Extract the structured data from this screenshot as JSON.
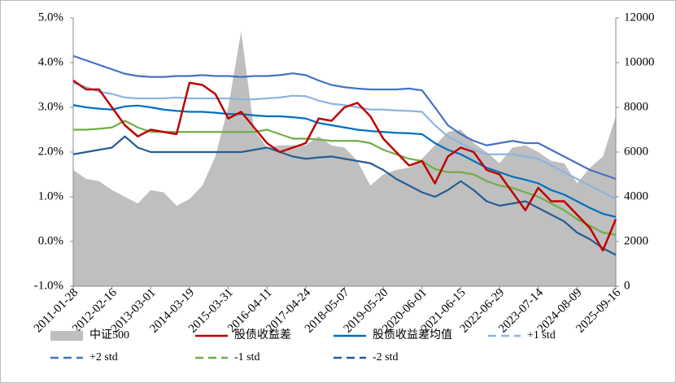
{
  "chart_data": {
    "type": "line",
    "categories": [
      "2011-01-28",
      null,
      null,
      "2012-02-16",
      null,
      null,
      "2013-03-01",
      null,
      null,
      "2014-03-19",
      null,
      null,
      "2015-03-31",
      null,
      null,
      "2016-04-11",
      null,
      null,
      "2017-04-24",
      null,
      null,
      "2018-05-07",
      null,
      null,
      "2019-05-20",
      null,
      null,
      "2020-06-01",
      null,
      null,
      "2021-06-15",
      null,
      null,
      "2022-06-29",
      null,
      null,
      "2023-07-14",
      null,
      null,
      "2024-08-09",
      null,
      null,
      "2025-09-16"
    ],
    "ylim": [
      -1,
      5
    ],
    "yticks": [
      {
        "value": -1,
        "label": "-1.0%"
      },
      {
        "value": 0,
        "label": "0.0%"
      },
      {
        "value": 1,
        "label": "1.0%"
      },
      {
        "value": 2,
        "label": "2.0%"
      },
      {
        "value": 3,
        "label": "3.0%"
      },
      {
        "value": 4,
        "label": "4.0%"
      },
      {
        "value": 5,
        "label": "5.0%"
      }
    ],
    "y2lim": [
      0,
      12000
    ],
    "y2ticks": [
      0,
      2000,
      4000,
      6000,
      8000,
      10000,
      12000
    ],
    "series": [
      {
        "name": "中证500",
        "type": "area",
        "axis": "y2",
        "color": "#bfbfbf",
        "values": [
          5200,
          4800,
          4700,
          4300,
          4000,
          3700,
          4300,
          4200,
          3600,
          3900,
          4500,
          5800,
          8000,
          11400,
          7000,
          6200,
          6300,
          6300,
          6300,
          6700,
          6300,
          6200,
          5600,
          4500,
          5000,
          5200,
          5300,
          5700,
          6300,
          6900,
          7000,
          6400,
          6000,
          5500,
          6200,
          6300,
          6000,
          5600,
          5500,
          4600,
          5300,
          5800,
          7600
        ]
      },
      {
        "name": "股债收益差",
        "type": "line",
        "color": "#c00000",
        "legend_line": "solid",
        "values": [
          3.6,
          3.4,
          3.4,
          3.0,
          2.6,
          2.35,
          2.5,
          2.45,
          2.4,
          3.55,
          3.5,
          3.3,
          2.75,
          2.9,
          2.55,
          2.2,
          2.0,
          2.1,
          2.2,
          2.75,
          2.7,
          3.0,
          3.1,
          2.8,
          2.3,
          2.0,
          1.7,
          1.8,
          1.3,
          1.9,
          2.1,
          2.0,
          1.6,
          1.5,
          1.1,
          0.7,
          1.2,
          0.9,
          0.9,
          0.6,
          0.3,
          -0.2,
          0.5
        ]
      },
      {
        "name": "股债收益差均值",
        "type": "line",
        "color": "#0070c0",
        "legend_line": "solid",
        "values": [
          3.05,
          3.0,
          2.97,
          2.95,
          3.02,
          3.04,
          3.0,
          2.95,
          2.92,
          2.9,
          2.9,
          2.88,
          2.85,
          2.85,
          2.82,
          2.8,
          2.8,
          2.78,
          2.75,
          2.65,
          2.6,
          2.55,
          2.5,
          2.47,
          2.45,
          2.43,
          2.42,
          2.4,
          2.2,
          2.05,
          1.95,
          1.8,
          1.65,
          1.55,
          1.45,
          1.38,
          1.3,
          1.15,
          1.05,
          0.9,
          0.75,
          0.62,
          0.55
        ]
      },
      {
        "name": "+1 std",
        "type": "line",
        "color": "#8db4e2",
        "legend_line": "dashed",
        "values": [
          3.55,
          3.45,
          3.35,
          3.3,
          3.22,
          3.2,
          3.2,
          3.2,
          3.22,
          3.2,
          3.2,
          3.2,
          3.2,
          3.18,
          3.18,
          3.2,
          3.22,
          3.26,
          3.25,
          3.15,
          3.08,
          3.05,
          3.0,
          2.95,
          2.95,
          2.93,
          2.92,
          2.9,
          2.6,
          2.35,
          2.2,
          2.05,
          1.95,
          1.95,
          1.95,
          1.9,
          1.85,
          1.7,
          1.55,
          1.4,
          1.25,
          1.1,
          0.95
        ]
      },
      {
        "name": "+2 std",
        "type": "line",
        "color": "#4472c4",
        "legend_line": "dashed",
        "values": [
          4.15,
          4.05,
          3.95,
          3.85,
          3.75,
          3.7,
          3.68,
          3.68,
          3.7,
          3.7,
          3.72,
          3.7,
          3.7,
          3.68,
          3.7,
          3.7,
          3.72,
          3.76,
          3.72,
          3.6,
          3.5,
          3.45,
          3.42,
          3.4,
          3.4,
          3.4,
          3.42,
          3.38,
          3.0,
          2.6,
          2.4,
          2.25,
          2.15,
          2.2,
          2.25,
          2.2,
          2.2,
          2.05,
          1.9,
          1.75,
          1.6,
          1.5,
          1.4
        ]
      },
      {
        "name": "-1 std",
        "type": "line",
        "color": "#70ad47",
        "legend_line": "dashed",
        "values": [
          2.5,
          2.5,
          2.52,
          2.55,
          2.7,
          2.55,
          2.45,
          2.45,
          2.45,
          2.45,
          2.45,
          2.45,
          2.45,
          2.45,
          2.45,
          2.5,
          2.4,
          2.3,
          2.3,
          2.28,
          2.25,
          2.25,
          2.25,
          2.2,
          2.05,
          1.95,
          1.85,
          1.8,
          1.62,
          1.55,
          1.55,
          1.5,
          1.35,
          1.25,
          1.2,
          1.1,
          1.0,
          0.85,
          0.7,
          0.5,
          0.35,
          0.2,
          0.15
        ]
      },
      {
        "name": "-2 std",
        "type": "line",
        "color": "#255e91",
        "legend_line": "dashed",
        "values": [
          1.95,
          2.0,
          2.05,
          2.1,
          2.35,
          2.1,
          2.0,
          2.0,
          2.0,
          2.0,
          2.0,
          2.0,
          2.0,
          2.0,
          2.05,
          2.1,
          2.0,
          1.9,
          1.85,
          1.88,
          1.9,
          1.85,
          1.8,
          1.75,
          1.6,
          1.4,
          1.25,
          1.1,
          1.0,
          1.15,
          1.35,
          1.15,
          0.9,
          0.8,
          0.85,
          0.9,
          0.75,
          0.6,
          0.45,
          0.2,
          0.05,
          -0.15,
          -0.3
        ]
      }
    ]
  }
}
